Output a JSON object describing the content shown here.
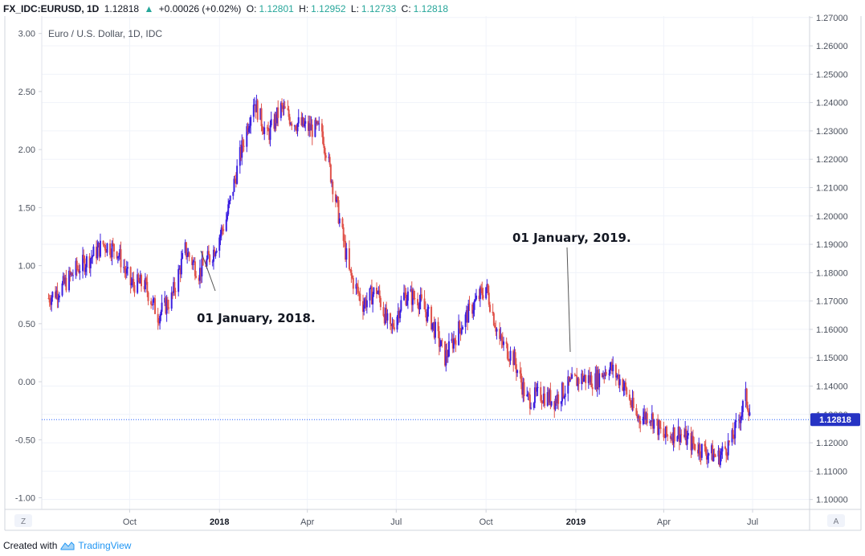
{
  "header": {
    "symbol": "FX_IDC:EURUSD, 1D",
    "last": "1.12818",
    "change_arrow": "▲",
    "change": "+0.00026 (+0.02%)",
    "open_label": "O:",
    "open": "1.12801",
    "high_label": "H:",
    "high": "1.12952",
    "low_label": "L:",
    "low": "1.12733",
    "close_label": "C:",
    "close": "1.12818"
  },
  "footer": {
    "created_with": "Created with",
    "brand": "TradingView"
  },
  "buttons": {
    "left": "Z",
    "right": "A"
  },
  "colors": {
    "up": "#3b1fe0",
    "down": "#e0534b",
    "price_line": "#2962ff",
    "price_badge_bg": "#2633c4",
    "grid": "#eef0f4",
    "text_green": "#26a69a"
  },
  "chart_data": {
    "type": "line",
    "title": "Euro / U.S. Dollar, 1D, IDC",
    "left_axis": {
      "ticks": [
        "3.00",
        "2.50",
        "2.00",
        "1.50",
        "1.00",
        "0.50",
        "0.00",
        "-0.50",
        "-1.00"
      ],
      "ylim": [
        -1.1,
        3.15
      ]
    },
    "right_axis": {
      "ticks": [
        "1.27000",
        "1.26000",
        "1.25000",
        "1.24000",
        "1.23000",
        "1.22000",
        "1.21000",
        "1.20000",
        "1.19000",
        "1.18000",
        "1.17000",
        "1.16000",
        "1.15000",
        "1.14000",
        "1.13000",
        "1.12000",
        "1.11000",
        "1.10000"
      ],
      "ylim": [
        1.0965,
        1.2705
      ],
      "last_price_label": "1.12818",
      "last_price": 1.12818
    },
    "x_axis": {
      "labels": [
        {
          "text": "Oct",
          "bold": false
        },
        {
          "text": "2018",
          "bold": true
        },
        {
          "text": "Apr",
          "bold": false
        },
        {
          "text": "Jul",
          "bold": false
        },
        {
          "text": "Oct",
          "bold": false
        },
        {
          "text": "2019",
          "bold": true
        },
        {
          "text": "Apr",
          "bold": false
        },
        {
          "text": "Jul",
          "bold": false
        }
      ]
    },
    "series": [
      {
        "x": [
          "2017-07-10",
          "2017-07-24",
          "2017-08-07",
          "2017-08-21",
          "2017-09-04",
          "2017-09-18",
          "2017-10-02",
          "2017-10-16",
          "2017-10-30",
          "2017-11-13",
          "2017-11-27",
          "2017-12-11",
          "2017-12-25",
          "2018-01-08",
          "2018-01-22",
          "2018-02-05",
          "2018-02-19",
          "2018-03-05",
          "2018-03-19",
          "2018-04-02",
          "2018-04-16",
          "2018-04-30",
          "2018-05-14",
          "2018-05-28",
          "2018-06-11",
          "2018-06-25",
          "2018-07-09",
          "2018-07-23",
          "2018-08-06",
          "2018-08-20",
          "2018-09-03",
          "2018-09-17",
          "2018-10-01",
          "2018-10-15",
          "2018-10-29",
          "2018-11-12",
          "2018-11-26",
          "2018-12-10",
          "2018-12-24",
          "2019-01-07",
          "2019-01-21",
          "2019-02-04",
          "2019-02-18",
          "2019-03-04",
          "2019-03-18",
          "2019-04-01",
          "2019-04-15",
          "2019-04-29",
          "2019-05-13",
          "2019-05-27",
          "2019-06-10",
          "2019-06-24",
          "2019-07-01"
        ],
        "values": [
          1.171,
          1.175,
          1.181,
          1.185,
          1.19,
          1.188,
          1.176,
          1.176,
          1.165,
          1.171,
          1.188,
          1.18,
          1.187,
          1.199,
          1.221,
          1.241,
          1.228,
          1.238,
          1.233,
          1.231,
          1.23,
          1.206,
          1.18,
          1.169,
          1.174,
          1.159,
          1.172,
          1.171,
          1.163,
          1.15,
          1.16,
          1.168,
          1.175,
          1.156,
          1.15,
          1.135,
          1.137,
          1.135,
          1.14,
          1.143,
          1.142,
          1.147,
          1.141,
          1.129,
          1.13,
          1.122,
          1.124,
          1.12,
          1.117,
          1.115,
          1.121,
          1.136,
          1.12818
        ]
      }
    ],
    "annotations": [
      {
        "text": "01 January, 2018.",
        "x": "2018-01-01"
      },
      {
        "text": "01 January, 2019.",
        "x": "2019-01-01"
      }
    ]
  }
}
